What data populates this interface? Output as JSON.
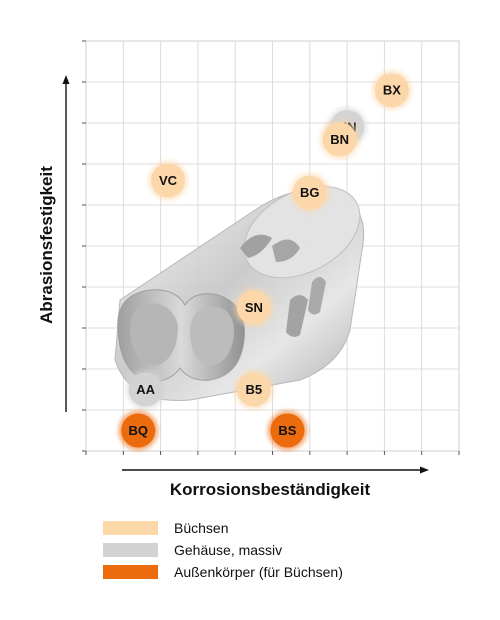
{
  "chart_data": {
    "type": "scatter",
    "xlabel": "Korrosionsbeständigkeit",
    "ylabel": "Abrasionsfestigkeit",
    "xlim": [
      0,
      10
    ],
    "ylim": [
      0,
      10
    ],
    "grid": true,
    "legend_position": "bottom",
    "series": [
      {
        "name": "Büchsen",
        "color": "#fcd7a9",
        "points": [
          {
            "label": "BX",
            "x": 8.2,
            "y": 8.8
          },
          {
            "label": "BN",
            "x": 6.8,
            "y": 7.6
          },
          {
            "label": "VC",
            "x": 2.2,
            "y": 6.6
          },
          {
            "label": "BG",
            "x": 6.0,
            "y": 6.3
          },
          {
            "label": "SN",
            "x": 4.5,
            "y": 3.5
          },
          {
            "label": "B5",
            "x": 4.5,
            "y": 1.5
          }
        ]
      },
      {
        "name": "Gehäuse, massiv",
        "color": "#d3d3d3",
        "points": [
          {
            "label": "HN",
            "x": 7.0,
            "y": 7.9
          },
          {
            "label": "AA",
            "x": 1.6,
            "y": 1.5
          }
        ]
      },
      {
        "name": "Außenkörper (für Büchsen)",
        "color": "#ec6b0d",
        "points": [
          {
            "label": "BQ",
            "x": 1.4,
            "y": 0.5
          },
          {
            "label": "BS",
            "x": 5.4,
            "y": 0.5
          }
        ]
      }
    ]
  },
  "legend": {
    "items": [
      {
        "label": "Büchsen",
        "color": "#fcd7a9"
      },
      {
        "label": "Gehäuse, massiv",
        "color": "#d3d3d3"
      },
      {
        "label": "Außenkörper (für Büchsen)",
        "color": "#ec6b0d"
      }
    ]
  }
}
